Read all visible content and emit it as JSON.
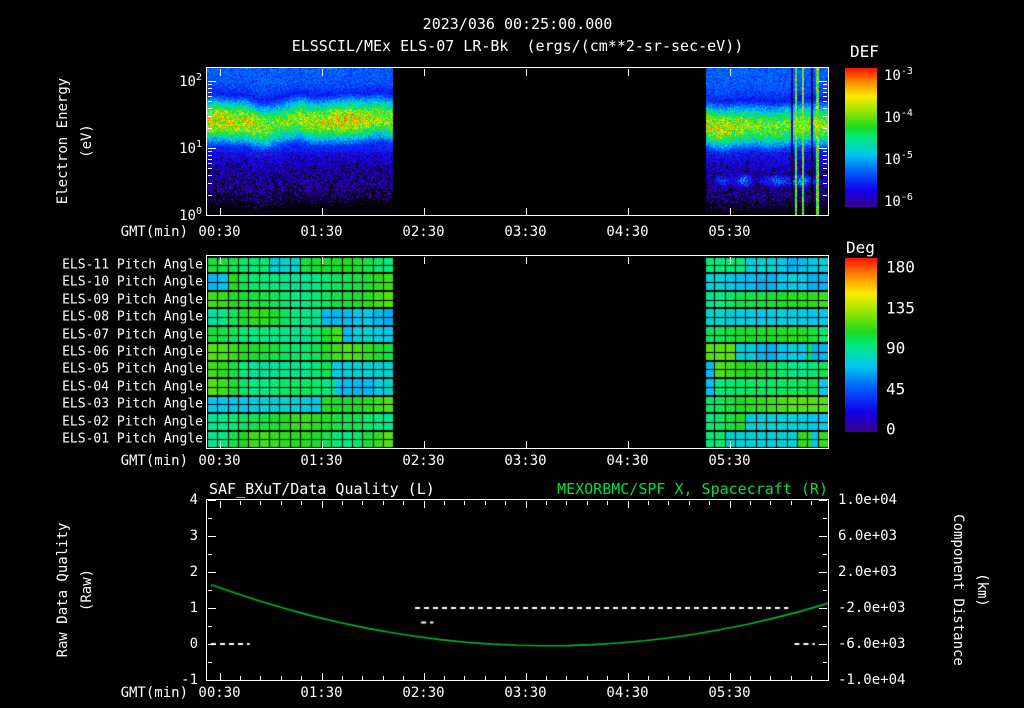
{
  "colors": {
    "background": "#000000",
    "foreground": "#ffffff",
    "accent_green": "#00dd44",
    "curve_green": "#00b43c",
    "colormap_stops": [
      [
        0.0,
        60,
        0,
        140
      ],
      [
        0.12,
        20,
        0,
        230
      ],
      [
        0.25,
        0,
        90,
        255
      ],
      [
        0.38,
        0,
        200,
        240
      ],
      [
        0.5,
        0,
        235,
        130
      ],
      [
        0.58,
        30,
        220,
        30
      ],
      [
        0.7,
        160,
        230,
        0
      ],
      [
        0.8,
        255,
        235,
        0
      ],
      [
        0.9,
        255,
        140,
        0
      ],
      [
        1.0,
        255,
        20,
        0
      ]
    ]
  },
  "header": {
    "title": "2023/036 00:25:00.000",
    "subtitle": "ELSSCIL/MEx ELS-07 LR-Bk  (ergs/(cm**2-sr-sec-eV))"
  },
  "time_axis": {
    "label": "GMT(min)",
    "ticks": [
      "00:30",
      "01:30",
      "02:30",
      "03:30",
      "04:30",
      "05:30"
    ]
  },
  "spectrogram_panel": {
    "ylabel_line1": "Electron Energy",
    "ylabel_line2": "(eV)",
    "yticks": [
      {
        "base": "10",
        "exp": "2",
        "decade": 2
      },
      {
        "base": "10",
        "exp": "1",
        "decade": 1
      },
      {
        "base": "10",
        "exp": "0",
        "decade": 0
      }
    ],
    "colorbar": {
      "title": "DEF",
      "ticks": [
        {
          "base": "10",
          "exp": "-3"
        },
        {
          "base": "10",
          "exp": "-4"
        },
        {
          "base": "10",
          "exp": "-5"
        },
        {
          "base": "10",
          "exp": "-6"
        }
      ]
    }
  },
  "pitch_panel": {
    "rows": [
      "ELS-11 Pitch Angle",
      "ELS-10 Pitch Angle",
      "ELS-09 Pitch Angle",
      "ELS-08 Pitch Angle",
      "ELS-07 Pitch Angle",
      "ELS-06 Pitch Angle",
      "ELS-05 Pitch Angle",
      "ELS-04 Pitch Angle",
      "ELS-03 Pitch Angle",
      "ELS-02 Pitch Angle",
      "ELS-01 Pitch Angle"
    ],
    "colorbar": {
      "title": "Deg",
      "ticks": [
        "180",
        "135",
        "90",
        "45",
        "0"
      ]
    }
  },
  "bottom_panel": {
    "title_left": "SAF_BXuT/Data Quality (L)",
    "title_right": "MEXORBMC/SPF X, Spacecraft (R)",
    "ylabel_left_line1": "Raw Data Quality",
    "ylabel_left_line2": "(Raw)",
    "ylabel_right_line1": "Component Distance",
    "ylabel_right_line2": "(km)",
    "yticks_left": [
      "4",
      "3",
      "2",
      "1",
      "0",
      "-1"
    ],
    "yticks_right": [
      "1.0e+04",
      "6.0e+03",
      "2.0e+03",
      "-2.0e+03",
      "-6.0e+03",
      "-1.0e+04"
    ]
  },
  "chart_data": [
    {
      "type": "heatmap",
      "name": "electron-energy-spectrogram",
      "title": "ELSSCIL/MEx ELS-07 LR-Bk",
      "units": "ergs/(cm**2-sr-sec-eV)",
      "start_time": "2023/036 00:25:00.000",
      "xlabel": "GMT(min)",
      "x_tick_labels": [
        "00:30",
        "01:30",
        "02:30",
        "03:30",
        "04:30",
        "05:30"
      ],
      "x_axis_hours_span": 6.05,
      "first_tick_hours_from_start": 0.0833,
      "x_tick_interval_hours": 1,
      "ylabel": "Electron Energy (eV)",
      "y_scale": "log",
      "y_range_ev": [
        1,
        158
      ],
      "colorbar_title": "DEF",
      "colorbar_ticks_log10": [
        -3,
        -4,
        -5,
        -6
      ],
      "data_segments_hours_from_start": [
        [
          0.0,
          1.78
        ],
        [
          4.89,
          6.06
        ]
      ],
      "features": {
        "band_center_ev": 28,
        "band_peak_def_log10": -3.6,
        "background_def_log10": -5.2,
        "low_energy_floor_def_log10": -6.0
      },
      "bright_streaks_hours": [
        5.73,
        5.8,
        5.94
      ],
      "dark_streaks_hours": [
        5.69,
        5.885
      ]
    },
    {
      "type": "heatmap",
      "name": "pitch-angle-panels",
      "rows": [
        "ELS-11",
        "ELS-10",
        "ELS-09",
        "ELS-08",
        "ELS-07",
        "ELS-06",
        "ELS-05",
        "ELS-04",
        "ELS-03",
        "ELS-02",
        "ELS-01"
      ],
      "units": "Deg",
      "colorbar_ticks_deg": [
        180,
        135,
        90,
        45,
        0
      ],
      "typical_pitch_deg": 100,
      "patch_pitch_deg": 70,
      "data_segments_hours_from_start": [
        [
          0.0,
          1.78
        ],
        [
          4.89,
          6.06
        ]
      ]
    },
    {
      "type": "line",
      "name": "quality-and-position",
      "ylim_left": [
        -1,
        4
      ],
      "ylim_right_km": [
        -10000,
        10000
      ],
      "km_conversion": "km = 4000*left_value - 6000",
      "series": [
        {
          "name": "MEXORBMC/SPF X, Spacecraft (R)",
          "color": "#00b43c",
          "style": "solid",
          "points": [
            [
              0.0,
              1.649
            ],
            [
              0.25,
              1.401
            ],
            [
              0.5,
              1.173
            ],
            [
              0.75,
              0.964
            ],
            [
              1.0,
              0.775
            ],
            [
              1.25,
              0.606
            ],
            [
              1.5,
              0.455
            ],
            [
              1.75,
              0.325
            ],
            [
              2.0,
              0.214
            ],
            [
              2.25,
              0.122
            ],
            [
              2.5,
              0.05
            ],
            [
              2.75,
              -0.003
            ],
            [
              3.0,
              -0.036
            ],
            [
              3.25,
              -0.05
            ],
            [
              3.5,
              -0.044
            ],
            [
              3.75,
              -0.018
            ],
            [
              4.0,
              0.026
            ],
            [
              4.25,
              0.091
            ],
            [
              4.5,
              0.175
            ],
            [
              4.75,
              0.278
            ],
            [
              5.0,
              0.401
            ],
            [
              5.25,
              0.543
            ],
            [
              5.5,
              0.705
            ],
            [
              5.75,
              0.886
            ],
            [
              6.05,
              1.13
            ]
          ]
        },
        {
          "name": "SAF_BXuT/Data Quality (L)",
          "color": "#ffffff",
          "style": "dashed",
          "segments": [
            {
              "t": [
                0.0,
                0.38
              ],
              "value": 0
            },
            {
              "t": [
                2.0,
                5.66
              ],
              "value": 1
            },
            {
              "t": [
                2.06,
                2.18
              ],
              "value": 0.6
            },
            {
              "t": [
                5.72,
                5.92
              ],
              "value": 0
            }
          ]
        }
      ]
    }
  ]
}
